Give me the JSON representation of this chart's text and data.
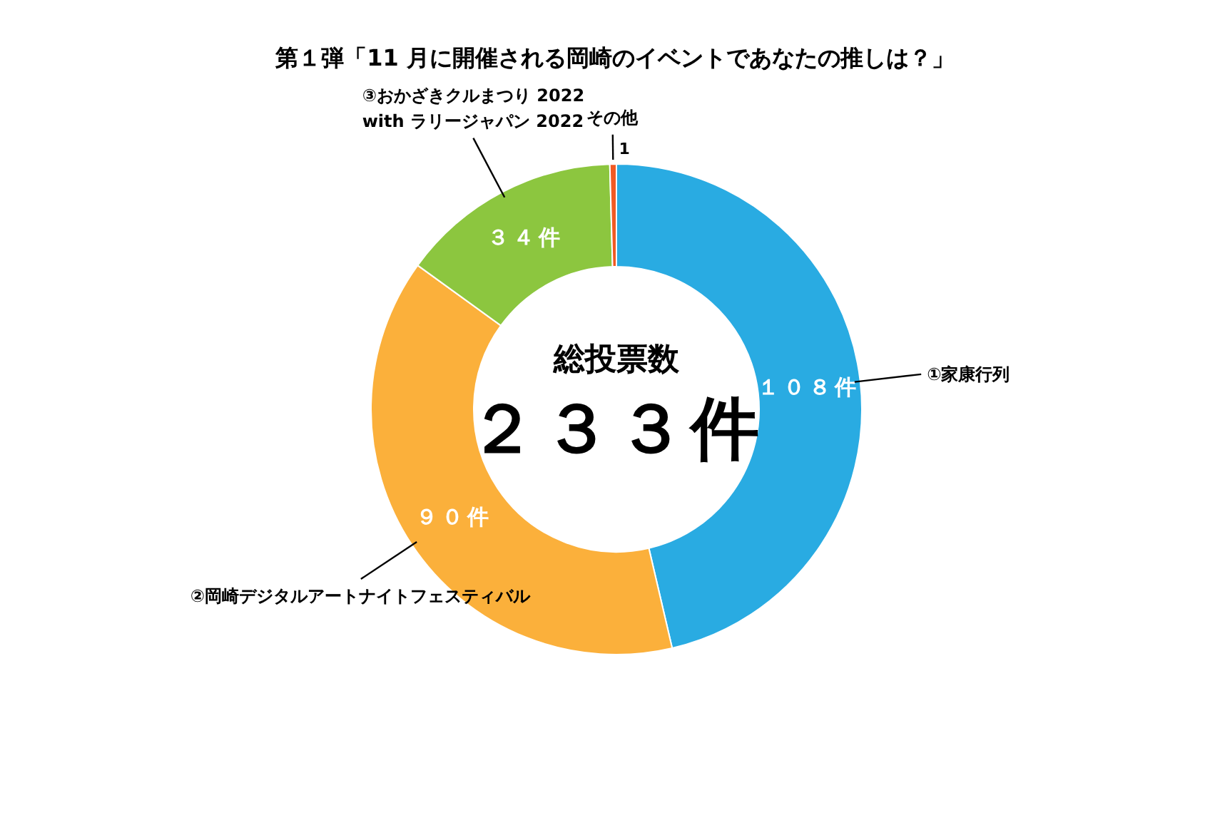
{
  "chart_data": {
    "type": "donut",
    "title": "第１弾「11 月に開催される岡崎のイベントであなたの推しは？」",
    "categories": [
      "①家康行列",
      "②岡崎デジタルアートナイトフェスティバル",
      "③おかざきクルまつり 2022\nwith ラリージャパン 2022",
      "その他"
    ],
    "values": [
      108,
      90,
      34,
      1
    ],
    "colors": [
      "#29abe2",
      "#fbb03b",
      "#8cc63f",
      "#f15a24"
    ],
    "value_labels": [
      "１０８件",
      "９０件",
      "３４件",
      "1"
    ],
    "annotations": [
      "総投票数",
      "２３３件"
    ]
  }
}
